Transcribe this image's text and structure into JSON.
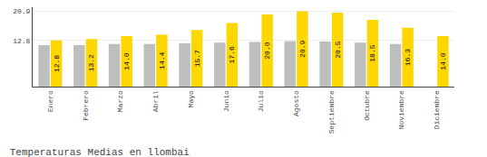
{
  "chart_data": {
    "type": "bar",
    "title": "Temperaturas Medias en llombai",
    "categories": [
      "Enero",
      "Febrero",
      "Marzo",
      "Abril",
      "Mayo",
      "Junio",
      "Julio",
      "Agosto",
      "Septiembre",
      "Octubre",
      "Noviembre",
      "Diciembre"
    ],
    "series": [
      {
        "color": "#BEBEBE",
        "values": [
          11.5,
          11.5,
          11.8,
          11.8,
          12.0,
          12.2,
          12.4,
          12.6,
          12.5,
          12.2,
          11.8,
          0.0
        ]
      },
      {
        "color": "#FFD700",
        "values": [
          12.8,
          13.2,
          14.0,
          14.4,
          15.7,
          17.6,
          20.0,
          20.9,
          20.5,
          18.5,
          16.3,
          14.0
        ],
        "data_labels": true,
        "value_labels": [
          "12.8",
          "13.2",
          "14.0",
          "14.4",
          "15.7",
          "17.6",
          "20.0",
          "20.9",
          "20.5",
          "18.5",
          "16.3",
          "14.0"
        ]
      }
    ],
    "ylim": [
      0,
      22.0
    ],
    "yticks": [
      12.8,
      20.9
    ],
    "y2lim": [
      0,
      22.0
    ],
    "y2ticks": [
      12.8,
      20.9
    ],
    "grid": true
  }
}
